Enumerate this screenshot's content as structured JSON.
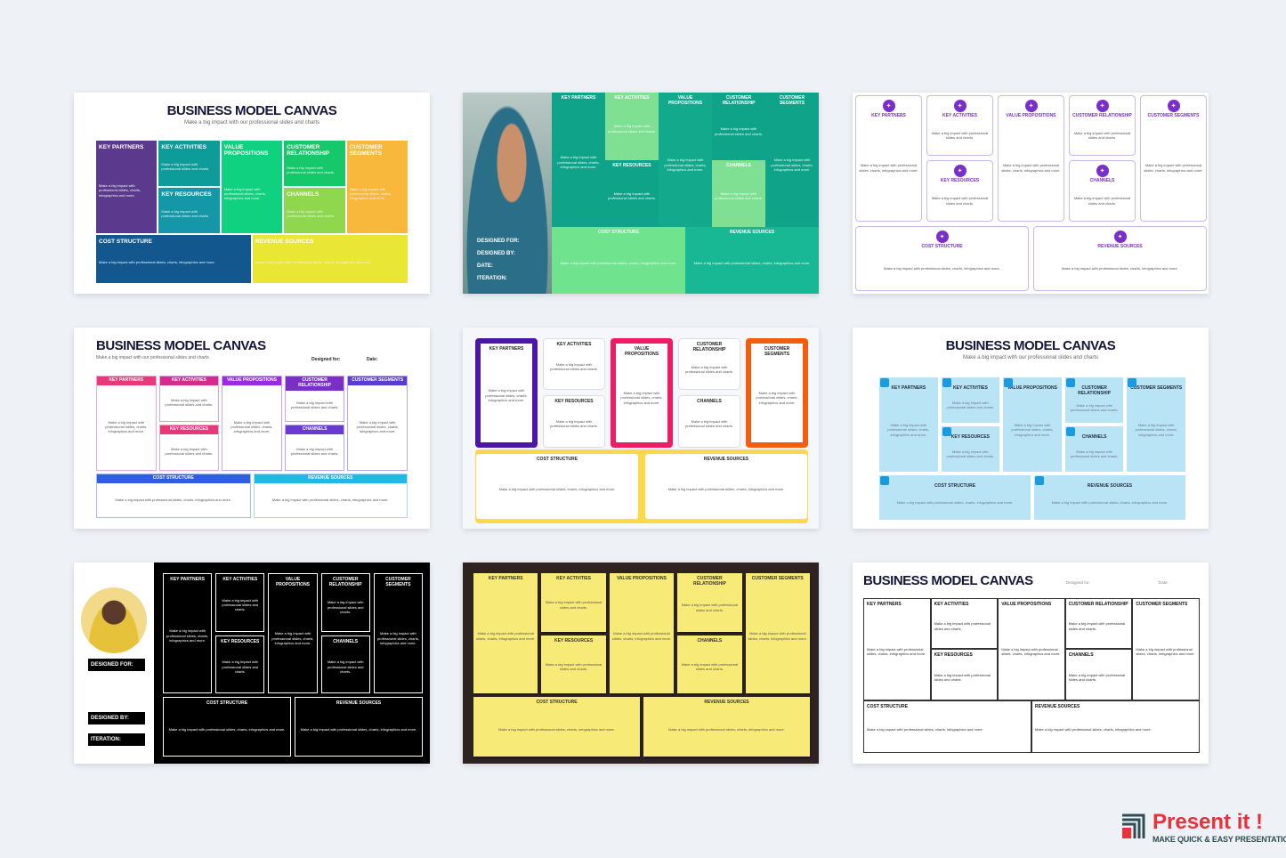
{
  "labels": {
    "kp": "KEY PARTNERS",
    "ka": "KEY ACTIVITIES",
    "kr": "KEY RESOURCES",
    "vp": "VALUE PROPOSITIONS",
    "cr": "CUSTOMER RELATIONSHIP",
    "ch": "CHANNELS",
    "cs": "CUSTOMER SEGMENTS",
    "cost": "COST STRUCTURE",
    "rev": "REVENUE SOURCES"
  },
  "descriptions": {
    "long": "Make a big impact with professional slides, charts, infographics and more.",
    "short": "Make a big impact with professional slides and charts."
  },
  "slides": [
    {
      "title": "BUSINESS MODEL CANVAS",
      "subtitle": "Make a big impact with our professional slides and charts",
      "bg": "#ffffff",
      "fills": [
        "#5b3a8e",
        "#0e9c9a",
        "#1497a6",
        "#10d17f",
        "#17c86a",
        "#8fd84e",
        "#f7b83c",
        "#12588f",
        "#e9e636"
      ],
      "borders": [],
      "label_color": "#ffffff",
      "text_color": "#e8f6f0",
      "align": "left"
    },
    {
      "fields": [
        "DESIGNED FOR:",
        "DESIGNED BY:",
        "DATE:",
        "ITERATION:"
      ],
      "bg": "#0f9e8c",
      "fills": [
        "#0fa38a",
        "#7fe094",
        "#0fa38a",
        "#12a98d",
        "#0fa38a",
        "#7fe094",
        "#0fa38a",
        "#6fe38d",
        "#17b893"
      ],
      "borders": [],
      "label_color": "#ffffff",
      "text_color": "#eafaf2",
      "align": "center"
    },
    {
      "bg": "#ffffff",
      "fills": [
        "#ffffff",
        "#ffffff",
        "#ffffff",
        "#ffffff",
        "#ffffff",
        "#ffffff",
        "#ffffff",
        "#ffffff",
        "#ffffff"
      ],
      "borders": [
        "#c9b8ea"
      ],
      "icon_color": "#7b2fc9",
      "label_color": "#7b2fc9",
      "text_color": "#555555",
      "align": "center"
    },
    {
      "title": "BUSINESS MODEL CANVAS",
      "subtitle": "Make a big impact with our professional slides and charts",
      "fields": [
        "Designed for:",
        "Date:"
      ],
      "bg": "#ffffff",
      "fills": [
        "#ffffff",
        "#ffffff",
        "#ffffff",
        "#ffffff",
        "#ffffff",
        "#ffffff",
        "#ffffff",
        "#ffffff",
        "#ffffff"
      ],
      "headers": [
        "#e8377a",
        "#d52b8e",
        "#e8377a",
        "#9b2be2",
        "#7a2fc9",
        "#6a3bd0",
        "#5b3bd6",
        "#2f5ee0",
        "#23b7e5"
      ],
      "borders": [
        "#e9a9d4",
        "#d9a1e6",
        "#e9a9d4",
        "#c7a2ee",
        "#c3a9ea",
        "#b9a9ea",
        "#b4a7ee",
        "#a7bcf3",
        "#a4def2"
      ],
      "label_color": "#ffffff",
      "text_color": "#555555",
      "align": "center"
    },
    {
      "bg": "#f6f7fb",
      "fills": [
        "#ffffff",
        "#ffffff",
        "#ffffff",
        "#ffffff",
        "#ffffff",
        "#ffffff",
        "#ffffff",
        "#ffffff",
        "#ffffff"
      ],
      "borders": [
        "#4a17a6",
        "#dddddd",
        "#dddddd",
        "#ee1d63",
        "#dddddd",
        "#dddddd",
        "#f55d0e",
        "#ffd84a",
        "#ffd84a"
      ],
      "bottom_band": "#ffd84a",
      "label_color": "#222222",
      "text_color": "#555555",
      "align": "center"
    },
    {
      "title": "BUSINESS MODEL CANVAS",
      "subtitle": "Make a big impact with our professional slides and charts",
      "bg": "#ffffff",
      "fills": [
        "#b9e4f6",
        "#b9e4f6",
        "#b9e4f6",
        "#b9e4f6",
        "#b9e4f6",
        "#b9e4f6",
        "#b9e4f6",
        "#b9e4f6",
        "#b9e4f6"
      ],
      "borders": [],
      "square_icon_color": "#1a9be0",
      "label_color": "#1d2a3a",
      "text_color": "#6a7a86",
      "align": "center"
    },
    {
      "fields": [
        "DESIGNED FOR:",
        "DESIGNED BY:",
        "ITERATION:"
      ],
      "bg": "#000000",
      "fills": [
        "#000000",
        "#000000",
        "#000000",
        "#000000",
        "#000000",
        "#000000",
        "#000000",
        "#000000",
        "#000000"
      ],
      "borders": [
        "#ffffff"
      ],
      "label_color": "#ffffff",
      "text_color": "#ffffff",
      "align": "center"
    },
    {
      "bg": "#2e2320",
      "fills": [
        "#f7ea77",
        "#f7ea77",
        "#f7ea77",
        "#f7ea77",
        "#f7ea77",
        "#f7ea77",
        "#f7ea77",
        "#f7ea77",
        "#f7ea77"
      ],
      "borders": [],
      "label_color": "#333333",
      "text_color": "#555555",
      "align": "center"
    },
    {
      "title": "BUSINESS MODEL CANVAS",
      "fields": [
        "Designed for:",
        "Date:"
      ],
      "bg": "#ffffff",
      "fills": [
        "#ffffff",
        "#ffffff",
        "#ffffff",
        "#ffffff",
        "#ffffff",
        "#ffffff",
        "#ffffff",
        "#ffffff",
        "#ffffff"
      ],
      "borders": [
        "#333333"
      ],
      "label_color": "#111111",
      "text_color": "#333333",
      "align": "left"
    }
  ],
  "brand": {
    "name": "Present it !",
    "tagline": "MAKE QUICK & EASY PRESENTATIONS",
    "red": "#e8313a",
    "dark": "#2f4d55"
  }
}
